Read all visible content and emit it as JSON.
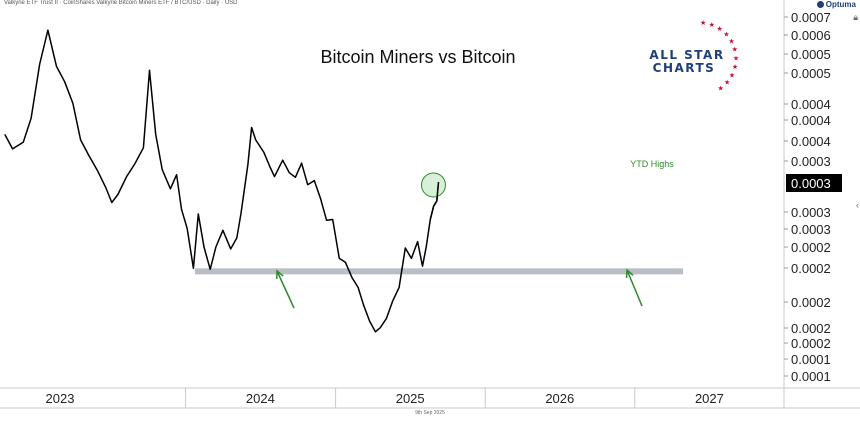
{
  "header": {
    "info": "Valkyrie ETF Trust II · CoinShares Valkyrie Bitcoin Miners ETF / BTC/USD · Daily · USD",
    "brand": "Optuma"
  },
  "logo": {
    "line1": "ALL STAR",
    "line2": "CHARTS"
  },
  "footer": {
    "date": "9th Sep 2025"
  },
  "colors": {
    "line": "#000000",
    "support": "#b9bec4",
    "arrow": "#2e8b2e",
    "highlight_fill": "#c8eac8",
    "highlight_stroke": "#2e8b2e",
    "last_value_bg": "#000000",
    "annotation": "#2e8b2e",
    "logo_text": "#1f3f7a",
    "logo_stars": "#c8102e"
  },
  "icons": {
    "brand": "optuma-logo",
    "lock": "lock-icon",
    "collapse": "chevron-left-icon",
    "stars": "star-icon"
  },
  "chart_data": {
    "type": "line",
    "title": "Bitcoin Miners vs Bitcoin",
    "xlabel": "",
    "ylabel": "",
    "scale": "log",
    "xlim": [
      "2022-10-15",
      "2027-12-31"
    ],
    "x_ticks": [
      "2023",
      "2024",
      "2025",
      "2026",
      "2027"
    ],
    "y_ticks": [
      "0.0007",
      "0.0006",
      "0.0005",
      "0.0005",
      "0.0004",
      "0.0004",
      "0.0004",
      "0.0003",
      "0.0003",
      "0.0003",
      "0.0002",
      "0.0002",
      "0.0002",
      "0.0002",
      "0.0002",
      "0.0001",
      "0.0001",
      "0.0001"
    ],
    "last_value": "0.0003",
    "support_level": 0.000205,
    "annotations": [
      "YTD Highs"
    ],
    "grid": false,
    "series": [
      {
        "x": [
          "2022-10-17",
          "2022-11-05",
          "2022-12-01",
          "2022-12-20",
          "2023-01-10",
          "2023-01-30",
          "2023-02-20",
          "2023-03-12",
          "2023-04-01",
          "2023-04-20",
          "2023-05-10",
          "2023-06-01",
          "2023-06-20",
          "2023-07-05",
          "2023-07-20",
          "2023-08-10",
          "2023-08-30",
          "2023-09-20",
          "2023-10-05",
          "2023-10-20",
          "2023-11-05",
          "2023-11-25",
          "2023-12-10",
          "2023-12-22",
          "2024-01-05",
          "2024-01-20",
          "2024-02-01",
          "2024-02-15",
          "2024-03-01",
          "2024-03-15",
          "2024-04-01",
          "2024-04-20",
          "2024-05-05",
          "2024-05-15",
          "2024-06-01",
          "2024-06-10",
          "2024-06-20",
          "2024-07-10",
          "2024-07-25",
          "2024-08-05",
          "2024-08-25",
          "2024-09-10",
          "2024-09-25",
          "2024-10-10",
          "2024-10-25",
          "2024-11-10",
          "2024-11-25",
          "2024-12-10",
          "2024-12-25",
          "2025-01-10",
          "2025-01-25",
          "2025-02-10",
          "2025-02-25",
          "2025-03-10",
          "2025-03-25",
          "2025-04-08",
          "2025-04-20",
          "2025-05-05",
          "2025-05-20",
          "2025-06-05",
          "2025-06-20",
          "2025-07-05",
          "2025-07-20",
          "2025-08-01",
          "2025-08-10",
          "2025-08-20",
          "2025-08-28",
          "2025-09-05",
          "2025-09-09"
        ],
        "values": [
          0.000392,
          0.000366,
          0.000378,
          0.000423,
          0.000547,
          0.000642,
          0.000541,
          0.000503,
          0.000454,
          0.000382,
          0.000355,
          0.000329,
          0.000305,
          0.000284,
          0.000295,
          0.000321,
          0.000341,
          0.000368,
          0.000531,
          0.000392,
          0.000332,
          0.000303,
          0.000324,
          0.000275,
          0.000251,
          0.000208,
          0.000269,
          0.00023,
          0.000207,
          0.00023,
          0.000249,
          0.000228,
          0.00024,
          0.000269,
          0.00034,
          0.000405,
          0.000382,
          0.00036,
          0.000336,
          0.000321,
          0.000347,
          0.000327,
          0.00032,
          0.000342,
          0.000309,
          0.000315,
          0.00029,
          0.000261,
          0.000262,
          0.000218,
          0.000214,
          0.000199,
          0.00019,
          0.000175,
          0.000162,
          0.000154,
          0.000157,
          0.000164,
          0.000178,
          0.00019,
          0.000229,
          0.000218,
          0.000236,
          0.00021,
          0.00023,
          0.000262,
          0.000279,
          0.000286,
          0.000313
        ]
      }
    ]
  }
}
